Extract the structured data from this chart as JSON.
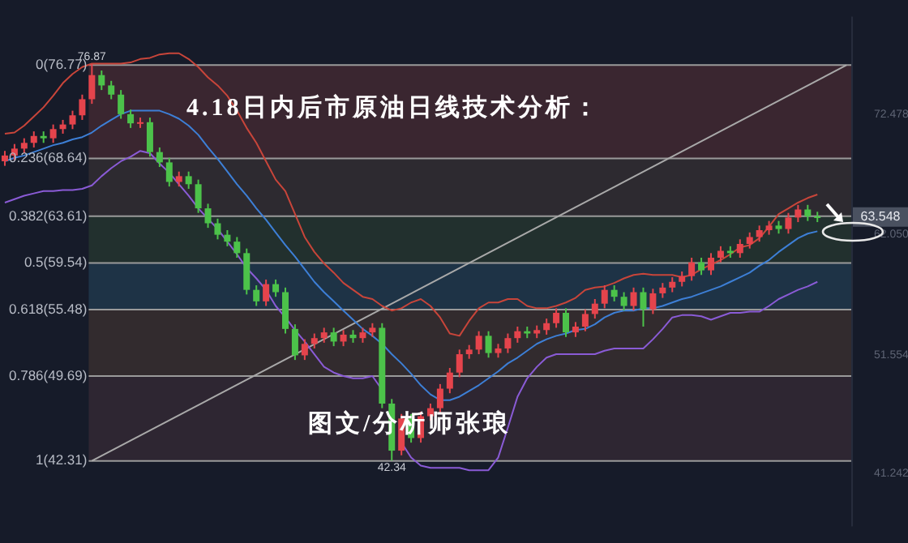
{
  "chart_data": {
    "type": "candlestick",
    "title": "4.18日内后市原油日线技术分析：",
    "categories": [
      null,
      null,
      null,
      null,
      null,
      null,
      null,
      null,
      null,
      null,
      null,
      null,
      null,
      null,
      null,
      null,
      null,
      null,
      null,
      null,
      null,
      null,
      null,
      null,
      null,
      null,
      null,
      null,
      null,
      null,
      null,
      null,
      null,
      null,
      null,
      null,
      null,
      null,
      null,
      null,
      null,
      null,
      null,
      null,
      null,
      null,
      null,
      null,
      null,
      null,
      null,
      null,
      null,
      null,
      null,
      null,
      null,
      null,
      null,
      null,
      null,
      null,
      null,
      null,
      null,
      null,
      null,
      null,
      null,
      null,
      null,
      null,
      null,
      null,
      null,
      null,
      null,
      null,
      null,
      null,
      null,
      null,
      null,
      null,
      null,
      null,
      null,
      null
    ],
    "ohlc": [
      [
        68.4,
        69.3,
        68.0,
        68.9
      ],
      [
        68.9,
        69.9,
        68.5,
        69.5
      ],
      [
        69.5,
        70.4,
        69.1,
        70.0
      ],
      [
        70.0,
        71.0,
        69.6,
        70.6
      ],
      [
        70.6,
        71.0,
        70.0,
        70.4
      ],
      [
        70.4,
        71.6,
        70.0,
        71.2
      ],
      [
        71.2,
        72.0,
        70.8,
        71.6
      ],
      [
        71.6,
        72.8,
        71.2,
        72.4
      ],
      [
        72.4,
        74.2,
        72.0,
        73.8
      ],
      [
        73.8,
        76.87,
        73.4,
        75.9
      ],
      [
        75.9,
        76.3,
        74.6,
        75.0
      ],
      [
        75.0,
        75.4,
        73.8,
        74.2
      ],
      [
        74.2,
        74.6,
        72.1,
        72.5
      ],
      [
        72.5,
        72.9,
        71.3,
        71.7
      ],
      [
        71.7,
        72.2,
        71.3,
        71.8
      ],
      [
        71.8,
        72.2,
        68.8,
        69.2
      ],
      [
        69.2,
        69.6,
        67.9,
        68.3
      ],
      [
        68.3,
        68.7,
        66.2,
        66.6
      ],
      [
        66.6,
        67.5,
        66.2,
        67.1
      ],
      [
        67.1,
        67.5,
        66.0,
        66.4
      ],
      [
        66.4,
        66.8,
        63.9,
        64.3
      ],
      [
        64.3,
        64.7,
        62.6,
        63.0
      ],
      [
        63.0,
        63.4,
        61.6,
        62.0
      ],
      [
        62.0,
        62.4,
        61.0,
        61.4
      ],
      [
        61.4,
        61.8,
        60.0,
        60.4
      ],
      [
        60.4,
        60.8,
        56.8,
        57.2
      ],
      [
        57.2,
        57.6,
        55.8,
        56.2
      ],
      [
        56.2,
        58.1,
        55.8,
        57.7
      ],
      [
        57.7,
        58.1,
        56.6,
        57.0
      ],
      [
        57.0,
        57.4,
        53.4,
        53.8
      ],
      [
        53.8,
        54.2,
        51.1,
        51.5
      ],
      [
        51.5,
        52.9,
        51.1,
        52.5
      ],
      [
        52.5,
        53.4,
        52.1,
        53.0
      ],
      [
        53.0,
        53.9,
        52.6,
        53.5
      ],
      [
        53.5,
        53.9,
        52.3,
        52.7
      ],
      [
        52.7,
        53.7,
        52.3,
        53.3
      ],
      [
        53.3,
        53.7,
        52.6,
        53.0
      ],
      [
        53.0,
        53.9,
        52.6,
        53.5
      ],
      [
        53.5,
        54.3,
        53.1,
        53.9
      ],
      [
        53.9,
        54.3,
        46.9,
        47.3
      ],
      [
        47.3,
        47.7,
        42.34,
        43.2
      ],
      [
        43.2,
        46.4,
        42.8,
        46.0
      ],
      [
        46.0,
        46.4,
        43.9,
        44.3
      ],
      [
        44.3,
        46.6,
        43.9,
        46.2
      ],
      [
        46.2,
        47.3,
        45.8,
        46.9
      ],
      [
        46.9,
        49.0,
        46.5,
        48.6
      ],
      [
        48.6,
        50.4,
        48.2,
        50.0
      ],
      [
        50.0,
        52.0,
        49.6,
        51.6
      ],
      [
        51.6,
        52.4,
        51.2,
        52.0
      ],
      [
        52.0,
        53.6,
        51.6,
        53.2
      ],
      [
        53.2,
        53.6,
        51.3,
        51.7
      ],
      [
        51.7,
        52.5,
        51.3,
        52.1
      ],
      [
        52.1,
        53.4,
        51.7,
        53.0
      ],
      [
        53.0,
        54.0,
        52.6,
        53.6
      ],
      [
        53.6,
        54.0,
        53.0,
        53.4
      ],
      [
        53.4,
        54.1,
        53.0,
        53.7
      ],
      [
        53.7,
        54.7,
        53.3,
        54.3
      ],
      [
        54.3,
        55.6,
        53.9,
        55.2
      ],
      [
        55.2,
        55.6,
        53.1,
        53.5
      ],
      [
        53.5,
        54.4,
        53.1,
        54.0
      ],
      [
        54.0,
        55.5,
        53.6,
        55.1
      ],
      [
        55.1,
        56.4,
        54.7,
        56.0
      ],
      [
        56.0,
        57.6,
        55.6,
        57.2
      ],
      [
        57.2,
        57.6,
        56.2,
        56.6
      ],
      [
        56.6,
        57.0,
        55.4,
        55.8
      ],
      [
        55.8,
        57.4,
        55.4,
        57.0
      ],
      [
        57.0,
        57.4,
        54.0,
        55.5
      ],
      [
        55.5,
        57.3,
        55.1,
        56.9
      ],
      [
        56.9,
        57.8,
        56.5,
        57.4
      ],
      [
        57.4,
        58.3,
        57.0,
        57.9
      ],
      [
        57.9,
        58.8,
        57.5,
        58.4
      ],
      [
        58.4,
        60.0,
        58.0,
        59.6
      ],
      [
        59.6,
        60.0,
        58.5,
        58.9
      ],
      [
        58.9,
        60.4,
        58.5,
        60.0
      ],
      [
        60.0,
        61.0,
        59.6,
        60.6
      ],
      [
        60.6,
        61.0,
        60.0,
        60.4
      ],
      [
        60.4,
        61.6,
        60.0,
        61.2
      ],
      [
        61.2,
        62.2,
        60.8,
        61.8
      ],
      [
        61.8,
        62.8,
        61.4,
        62.4
      ],
      [
        62.4,
        63.2,
        62.0,
        62.8
      ],
      [
        62.8,
        63.2,
        62.1,
        62.5
      ],
      [
        62.5,
        63.9,
        62.1,
        63.5
      ],
      [
        63.5,
        64.6,
        63.1,
        64.2
      ],
      [
        64.2,
        64.6,
        63.2,
        63.6
      ],
      [
        63.6,
        64.0,
        63.1,
        63.5
      ],
      null,
      null,
      null
    ],
    "colors": [
      "#e5444c",
      "#e5444c",
      "#e5444c",
      "#e5444c",
      "#4cc24a",
      "#e5444c",
      "#e5444c",
      "#e5444c",
      "#e5444c",
      "#e5444c",
      "#4cc24a",
      "#4cc24a",
      "#4cc24a",
      "#4cc24a",
      "#e5444c",
      "#4cc24a",
      "#4cc24a",
      "#4cc24a",
      "#e5444c",
      "#4cc24a",
      "#4cc24a",
      "#4cc24a",
      "#4cc24a",
      "#4cc24a",
      "#4cc24a",
      "#4cc24a",
      "#4cc24a",
      "#e5444c",
      "#4cc24a",
      "#4cc24a",
      "#4cc24a",
      "#e5444c",
      "#e5444c",
      "#e5444c",
      "#4cc24a",
      "#e5444c",
      "#4cc24a",
      "#e5444c",
      "#e5444c",
      "#4cc24a",
      "#4cc24a",
      "#e5444c",
      "#4cc24a",
      "#e5444c",
      "#e5444c",
      "#e5444c",
      "#e5444c",
      "#e5444c",
      "#e5444c",
      "#e5444c",
      "#4cc24a",
      "#e5444c",
      "#e5444c",
      "#e5444c",
      "#4cc24a",
      "#e5444c",
      "#e5444c",
      "#e5444c",
      "#4cc24a",
      "#e5444c",
      "#e5444c",
      "#e5444c",
      "#e5444c",
      "#4cc24a",
      "#4cc24a",
      "#e5444c",
      "#4cc24a",
      "#e5444c",
      "#e5444c",
      "#e5444c",
      "#e5444c",
      "#e5444c",
      "#4cc24a",
      "#e5444c",
      "#e5444c",
      "#4cc24a",
      "#e5444c",
      "#e5444c",
      "#e5444c",
      "#e5444c",
      "#4cc24a",
      "#e5444c",
      "#e5444c",
      "#4cc24a",
      "#4cc24a",
      null,
      null,
      null
    ],
    "series": [
      {
        "type": "line",
        "color": "#c8453a",
        "values": [
          70.8,
          70.9,
          71.5,
          72.3,
          73.1,
          74.1,
          75.2,
          76.0,
          76.6,
          76.9,
          76.9,
          76.9,
          76.9,
          77.0,
          77.3,
          77.4,
          77.7,
          77.8,
          77.8,
          77.3,
          76.6,
          75.7,
          75.0,
          74.1,
          72.8,
          71.3,
          70.0,
          68.4,
          66.8,
          65.8,
          63.8,
          61.8,
          60.5,
          59.5,
          58.7,
          57.8,
          57.2,
          56.6,
          56.4,
          55.8,
          55.4,
          55.6,
          56.1,
          56.4,
          55.8,
          54.8,
          53.4,
          53.2,
          54.5,
          55.6,
          56.1,
          56.1,
          56.4,
          56.4,
          55.8,
          55.6,
          55.6,
          55.8,
          56.1,
          56.5,
          57.2,
          57.4,
          57.5,
          57.8,
          58.2,
          58.5,
          58.6,
          58.5,
          58.5,
          58.5,
          58.3,
          58.5,
          59.0,
          59.4,
          59.8,
          60.3,
          60.9,
          61.1,
          61.7,
          62.7,
          63.8,
          64.3,
          64.8,
          65.2,
          65.5,
          null,
          null,
          null
        ]
      },
      {
        "type": "line",
        "color": "#3d7fd6",
        "values": [
          68.4,
          68.7,
          68.9,
          69.2,
          69.5,
          69.8,
          70.0,
          70.3,
          70.5,
          70.9,
          71.5,
          72.0,
          72.5,
          72.8,
          72.8,
          72.8,
          72.8,
          72.5,
          72.1,
          71.5,
          70.7,
          69.6,
          68.6,
          67.5,
          66.4,
          65.4,
          64.3,
          63.3,
          62.2,
          61.1,
          60.1,
          59.0,
          57.9,
          57.0,
          56.2,
          55.4,
          54.6,
          53.8,
          53.2,
          52.5,
          51.6,
          50.8,
          49.9,
          48.9,
          48.1,
          47.6,
          47.6,
          47.9,
          48.4,
          48.9,
          49.5,
          50.1,
          50.8,
          51.3,
          51.9,
          52.5,
          52.9,
          53.2,
          53.4,
          53.7,
          53.8,
          54.2,
          54.8,
          55.2,
          55.4,
          55.4,
          55.6,
          55.6,
          55.8,
          56.1,
          56.4,
          56.6,
          56.9,
          57.2,
          57.5,
          57.9,
          58.3,
          58.7,
          59.3,
          59.8,
          60.5,
          61.1,
          61.7,
          62.1,
          62.3,
          null,
          null,
          null
        ]
      },
      {
        "type": "line",
        "color": "#8a5bd6",
        "values": [
          64.8,
          65.1,
          65.4,
          65.6,
          65.8,
          65.8,
          65.9,
          65.9,
          66.0,
          66.3,
          67.1,
          67.8,
          68.4,
          68.8,
          69.3,
          69.1,
          68.2,
          67.4,
          66.4,
          65.4,
          64.3,
          63.4,
          62.5,
          61.4,
          60.3,
          59.1,
          58.2,
          57.2,
          55.8,
          54.8,
          53.7,
          52.7,
          51.6,
          50.5,
          50.0,
          49.7,
          49.5,
          49.5,
          49.7,
          48.5,
          null,
          43.9,
          42.6,
          41.9,
          41.7,
          41.7,
          41.7,
          41.7,
          41.5,
          41.5,
          41.5,
          42.6,
          45.2,
          47.9,
          49.5,
          50.5,
          51.3,
          51.6,
          51.6,
          51.6,
          51.6,
          51.6,
          51.9,
          52.1,
          52.1,
          52.1,
          52.1,
          52.9,
          53.8,
          54.8,
          55.0,
          55.0,
          54.9,
          54.6,
          54.9,
          55.2,
          55.2,
          55.3,
          55.3,
          55.8,
          56.4,
          56.8,
          57.2,
          57.5,
          57.9,
          null,
          null,
          null
        ]
      },
      {
        "type": "line",
        "color": "#a9a9a9",
        "values": [
          null,
          null,
          null,
          null,
          null,
          null,
          null,
          null,
          null,
          42.31,
          null,
          null,
          null,
          null,
          null,
          null,
          null,
          null,
          null,
          null,
          null,
          null,
          null,
          null,
          null,
          null,
          null,
          null,
          null,
          null,
          null,
          null,
          null,
          null,
          null,
          null,
          null,
          null,
          null,
          null,
          null,
          null,
          null,
          null,
          null,
          null,
          null,
          null,
          null,
          null,
          null,
          null,
          null,
          null,
          null,
          null,
          null,
          null,
          null,
          null,
          null,
          null,
          null,
          null,
          null,
          null,
          null,
          null,
          null,
          null,
          null,
          null,
          null,
          null,
          null,
          null,
          null,
          null,
          null,
          null,
          null,
          null,
          null,
          null,
          null,
          null,
          null,
          76.77
        ]
      }
    ],
    "ylim": [
      36.6,
      81.0
    ],
    "yticks": [
      72.478,
      {
        "value": 62.05,
        "label": "62.050"
      },
      51.554,
      41.242
    ],
    "ref_lines": [
      {
        "axis": "y",
        "value": 76.77,
        "label": "0(76.77)",
        "color": "#9a9a9a"
      },
      {
        "axis": "y",
        "value": 68.64,
        "label": "0.236(68.64)",
        "color": "#9a9a9a"
      },
      {
        "axis": "y",
        "value": 63.61,
        "label": "0.382(63.61)",
        "color": "#9a9a9a"
      },
      {
        "axis": "y",
        "value": 59.54,
        "label": "0.5(59.54)",
        "color": "#9a9a9a"
      },
      {
        "axis": "y",
        "value": 55.48,
        "label": "0.618(55.48)",
        "color": "#9a9a9a"
      },
      {
        "axis": "y",
        "value": 49.69,
        "label": "0.786(49.69)",
        "color": "#9a9a9a"
      },
      {
        "axis": "y",
        "value": 42.31,
        "label": "1(42.31)",
        "color": "#9a9a9a"
      }
    ],
    "bands": [
      {
        "axis": "y",
        "from": 68.64,
        "to": 76.77,
        "color": "#3a2630"
      },
      {
        "axis": "y",
        "from": 63.61,
        "to": 68.64,
        "color": "#2d2a30"
      },
      {
        "axis": "y",
        "from": 59.54,
        "to": 63.61,
        "color": "#22302e"
      },
      {
        "axis": "y",
        "from": 55.48,
        "to": 59.54,
        "color": "#1e3346"
      },
      {
        "axis": "y",
        "from": 49.69,
        "to": 55.48,
        "color": "#322b2e"
      },
      {
        "axis": "y",
        "from": 42.31,
        "to": 49.69,
        "color": "#2e2632"
      }
    ],
    "annotations": [
      "图文/分析师张琅",
      {
        "text": "76.87",
        "y": 76.87
      },
      {
        "text": "42.34",
        "y": 42.34
      },
      {
        "text": "63.548",
        "y": 63.548
      }
    ],
    "tick_labels": "y",
    "grid": false,
    "legend": false
  }
}
